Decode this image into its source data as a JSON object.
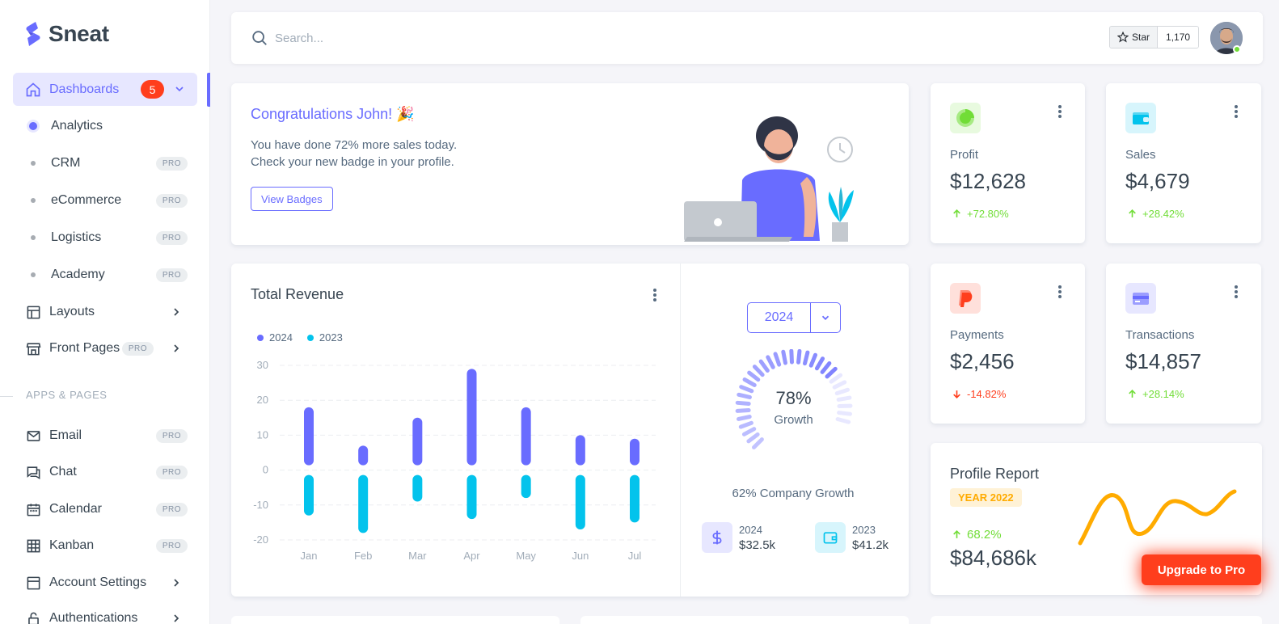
{
  "brand": {
    "name": "Sneat",
    "color": "#696cff"
  },
  "sidebar": {
    "active": {
      "label": "Dashboards",
      "badge": "5"
    },
    "sub_items": [
      {
        "label": "Analytics",
        "pro": ""
      },
      {
        "label": "CRM",
        "pro": "PRO"
      },
      {
        "label": "eCommerce",
        "pro": "PRO"
      },
      {
        "label": "Logistics",
        "pro": "PRO"
      },
      {
        "label": "Academy",
        "pro": "PRO"
      }
    ],
    "items": [
      {
        "label": "Layouts",
        "icon": "layout-icon"
      },
      {
        "label": "Front Pages",
        "icon": "store-icon",
        "pro": "PRO"
      }
    ],
    "section_header": "APPS & PAGES",
    "apps": [
      {
        "label": "Email",
        "icon": "mail-icon",
        "pro": "PRO"
      },
      {
        "label": "Chat",
        "icon": "chat-icon",
        "pro": "PRO"
      },
      {
        "label": "Calendar",
        "icon": "calendar-icon",
        "pro": "PRO"
      },
      {
        "label": "Kanban",
        "icon": "grid-icon",
        "pro": "PRO"
      },
      {
        "label": "Account Settings",
        "icon": "dock-icon"
      },
      {
        "label": "Authentications",
        "icon": "lock-icon"
      }
    ]
  },
  "navbar": {
    "search_placeholder": "Search...",
    "star_label": "Star",
    "star_count": "1,170"
  },
  "welcome": {
    "title": "Congratulations John! 🎉",
    "line1": "You have done 72% more sales today.",
    "line2": "Check your new badge in your profile.",
    "button": "View Badges"
  },
  "stats": {
    "profit": {
      "label": "Profit",
      "value": "$12,628",
      "change": "+72.80%",
      "dir": "up"
    },
    "sales": {
      "label": "Sales",
      "value": "$4,679",
      "change": "+28.42%",
      "dir": "up"
    },
    "payments": {
      "label": "Payments",
      "value": "$2,456",
      "change": "-14.82%",
      "dir": "down"
    },
    "transactions": {
      "label": "Transactions",
      "value": "$14,857",
      "change": "+28.14%",
      "dir": "up"
    }
  },
  "revenue": {
    "title": "Total Revenue",
    "year_selected": "2024",
    "growth_pct": "78%",
    "growth_label": "Growth",
    "company_growth": "62% Company Growth",
    "mini": [
      {
        "year": "2024",
        "amount": "$32.5k"
      },
      {
        "year": "2023",
        "amount": "$41.2k"
      }
    ]
  },
  "profile_report": {
    "title": "Profile Report",
    "badge": "YEAR 2022",
    "change": "68.2%",
    "value": "$84,686k"
  },
  "upgrade_label": "Upgrade to Pro",
  "chart_data": [
    {
      "type": "bar",
      "title": "",
      "categories": [
        "Jan",
        "Feb",
        "Mar",
        "Apr",
        "May",
        "Jun",
        "Jul"
      ],
      "series": [
        {
          "name": "2024",
          "values": [
            18,
            7,
            15,
            29,
            18,
            10,
            9
          ],
          "color": "#696cff"
        },
        {
          "name": "2023",
          "values": [
            -13,
            -18,
            -9,
            -14,
            -8,
            -17,
            -15
          ],
          "color": "#03c3ec"
        }
      ],
      "yticks": [
        "30",
        "20",
        "10",
        "0",
        "-10",
        "-20"
      ],
      "ylim": [
        -20,
        30
      ],
      "legend": "top-left",
      "grid": true
    },
    {
      "type": "radial",
      "value": 78
    }
  ]
}
